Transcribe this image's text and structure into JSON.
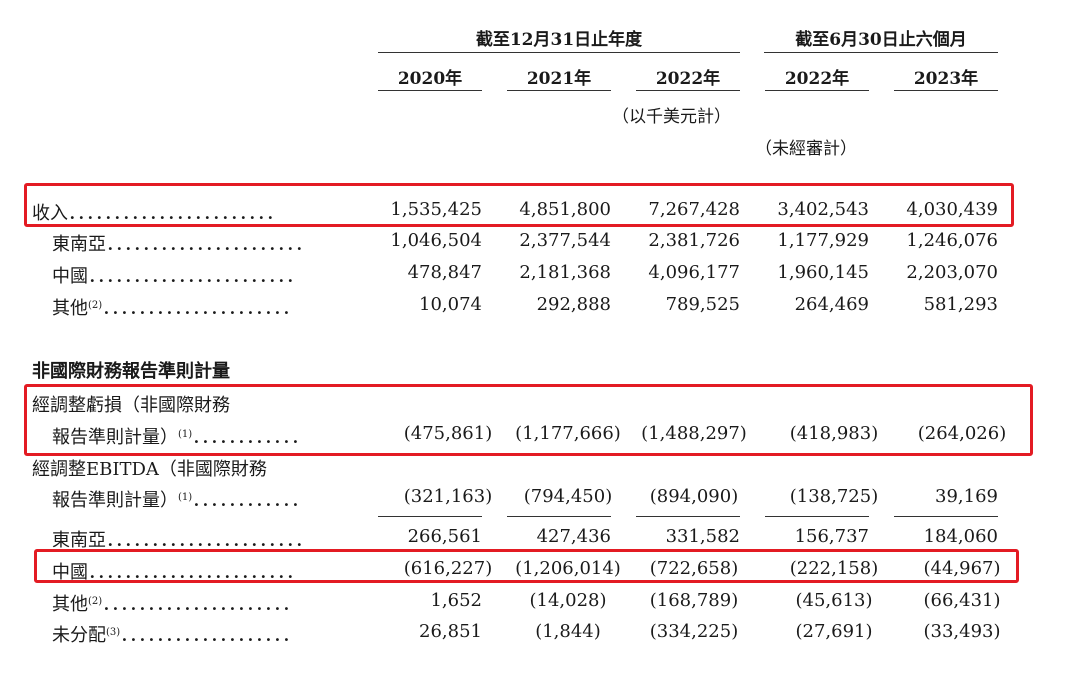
{
  "header": {
    "group1": "截至12月31日止年度",
    "group2": "截至6月30日止六個月",
    "years": [
      "2020年",
      "2021年",
      "2022年",
      "2022年",
      "2023年"
    ],
    "unit_note": "（以千美元計）",
    "unaudited_note": "（未經審計）"
  },
  "rows": {
    "revenue": {
      "label": "收入",
      "dots": "．．．．．．．．．．．．．．．．．．．．．．．",
      "values": [
        "1,535,425",
        "4,851,800",
        "7,267,428",
        "3,402,543",
        "4,030,439"
      ]
    },
    "rev_sea": {
      "label": "東南亞",
      "dots": "．．．．．．．．．．．．．．．．．．．．．．",
      "values": [
        "1,046,504",
        "2,377,544",
        "2,381,726",
        "1,177,929",
        "1,246,076"
      ]
    },
    "rev_china": {
      "label": "中國",
      "dots": "．．．．．．．．．．．．．．．．．．．．．．．",
      "values": [
        "478,847",
        "2,181,368",
        "4,096,177",
        "1,960,145",
        "2,203,070"
      ]
    },
    "rev_other": {
      "label": "其他",
      "sup": "(2)",
      "dots": "．．．．．．．．．．．．．．．．．．．．．",
      "values": [
        "10,074",
        "292,888",
        "789,525",
        "264,469",
        "581,293"
      ]
    },
    "section_title": "非國際財務報告準則計量",
    "adj_loss": {
      "label_line1": "經調整虧損（非國際財務",
      "label_line2": "報告準則計量）",
      "sup": "(1)",
      "dots": "．．．．．．．．．．．．",
      "values": [
        "(475,861)",
        "(1,177,666)",
        "(1,488,297)",
        "(418,983)",
        "(264,026)"
      ]
    },
    "adj_ebitda": {
      "label_line1": "經調整EBITDA（非國際財務",
      "label_line2": "報告準則計量）",
      "sup": "(1)",
      "dots": "．．．．．．．．．．．．",
      "values": [
        "(321,163)",
        "(794,450)",
        "(894,090)",
        "(138,725)",
        "39,169"
      ]
    },
    "ebitda_sea": {
      "label": "東南亞",
      "dots": "．．．．．．．．．．．．．．．．．．．．．．",
      "values": [
        "266,561",
        "427,436",
        "331,582",
        "156,737",
        "184,060"
      ]
    },
    "ebitda_china": {
      "label": "中國",
      "dots": "．．．．．．．．．．．．．．．．．．．．．．．",
      "values": [
        "(616,227)",
        "(1,206,014)",
        "(722,658)",
        "(222,158)",
        "(44,967)"
      ]
    },
    "ebitda_other": {
      "label": "其他",
      "sup": "(2)",
      "dots": "．．．．．．．．．．．．．．．．．．．．．",
      "values": [
        "1,652",
        "(14,028)",
        "(168,789)",
        "(45,613)",
        "(66,431)"
      ]
    },
    "ebitda_unalloc": {
      "label": "未分配",
      "sup": "(3)",
      "dots": "．．．．．．．．．．．．．．．．．．．",
      "values": [
        "26,851",
        "(1,844)",
        "(334,225)",
        "(27,691)",
        "(33,493)"
      ]
    }
  },
  "highlight_color": "#e31b23"
}
